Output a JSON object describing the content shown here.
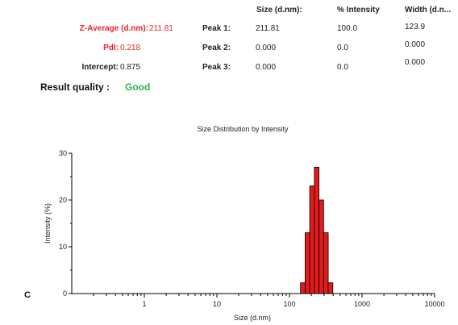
{
  "summary": {
    "z_average_label": "Z-Average (d.nm):",
    "z_average_value": "211.81",
    "pdi_label": "PdI:",
    "pdi_value": "0.218",
    "intercept_label": "Intercept:",
    "intercept_value": "0.875",
    "result_quality_label": "Result quality :",
    "result_quality_value": "Good"
  },
  "peak_table": {
    "headers": [
      "Size (d.nm):",
      "% Intensity",
      "Width (d.n..."
    ],
    "rows": [
      {
        "label": "Peak 1:",
        "size": "211.81",
        "intensity": "100.0",
        "width": "123.9"
      },
      {
        "label": "Peak 2:",
        "size": "0.000",
        "intensity": "0.0",
        "width": "0.000"
      },
      {
        "label": "Peak 3:",
        "size": "0.000",
        "intensity": "0.0",
        "width": "0.000"
      }
    ]
  },
  "panel_letter": "C",
  "colors": {
    "accent_red": "#e8242a",
    "good_green": "#25b54a",
    "bar_fill": "#e31b1b"
  },
  "chart_data": {
    "type": "bar",
    "title": "Size Distribution by Intensity",
    "xlabel": "Size (d.nm)",
    "ylabel": "Intensity (%)",
    "xscale": "log",
    "xlim": [
      0.1,
      10000
    ],
    "ylim": [
      0,
      30
    ],
    "xticks": [
      1,
      10,
      100,
      1000,
      10000
    ],
    "xtick_labels": [
      "1",
      "10",
      "100",
      "1000",
      "10000"
    ],
    "yticks": [
      0,
      10,
      20,
      30
    ],
    "ytick_labels": [
      "0",
      "10",
      "20",
      "30"
    ],
    "grid": false,
    "bars": [
      {
        "x0": 141.8,
        "x1": 164.2,
        "value": 2.3
      },
      {
        "x0": 164.2,
        "x1": 190.1,
        "value": 13.0
      },
      {
        "x0": 190.1,
        "x1": 220.2,
        "value": 23.0
      },
      {
        "x0": 220.2,
        "x1": 255.0,
        "value": 27.0
      },
      {
        "x0": 255.0,
        "x1": 295.3,
        "value": 20.0
      },
      {
        "x0": 295.3,
        "x1": 342.0,
        "value": 13.0
      },
      {
        "x0": 342.0,
        "x1": 396.1,
        "value": 2.3
      }
    ]
  }
}
